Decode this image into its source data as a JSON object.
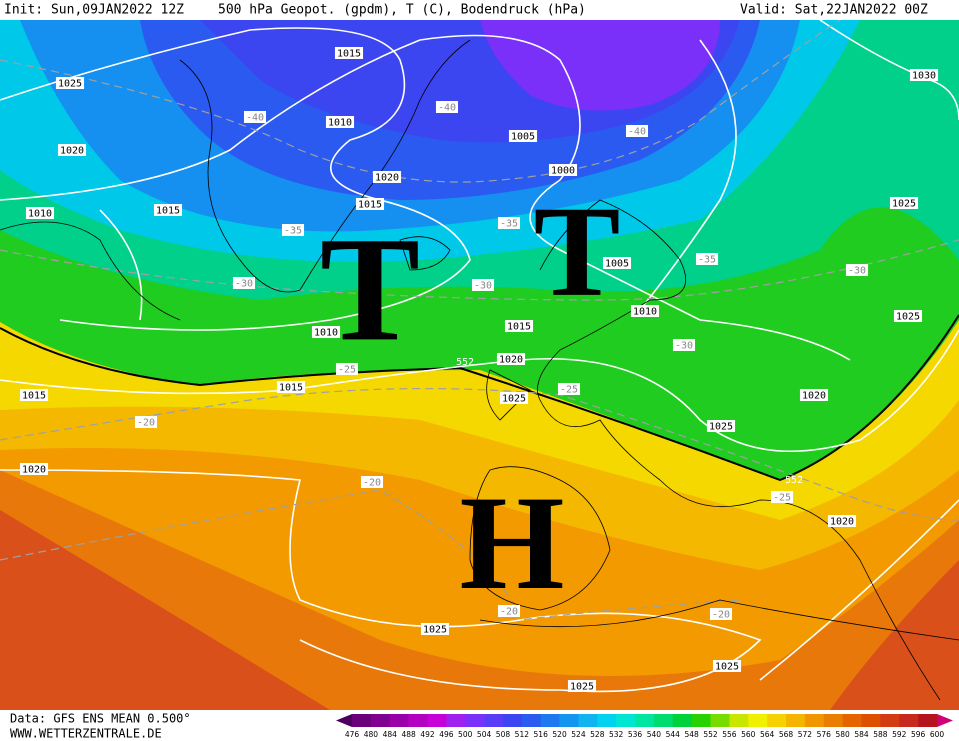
{
  "header": {
    "init": "Init: Sun,09JAN2022 12Z",
    "title": "500 hPa Geopot. (gpdm), T (C), Bodendruck (hPa)",
    "valid": "Valid: Sat,22JAN2022 00Z"
  },
  "footer": {
    "data": "Data: GFS ENS MEAN 0.500°",
    "site": "WWW.WETTERZENTRALE.DE"
  },
  "pressure_systems": [
    "T",
    "T",
    "H"
  ],
  "isobar_labels": [
    "1015",
    "1025",
    "1030",
    "1010",
    "1020",
    "1005",
    "1000",
    "1020",
    "1015",
    "1010",
    "1015",
    "1025",
    "1005",
    "1010",
    "1015",
    "1010",
    "1025",
    "1020",
    "1015",
    "1025",
    "1015",
    "1020",
    "1025",
    "1020",
    "1020",
    "1025",
    "1025",
    "1025"
  ],
  "temperature_labels": [
    "-40",
    "-40",
    "-40",
    "-35",
    "-35",
    "-35",
    "-30",
    "-30",
    "-30",
    "-30",
    "-25",
    "-25",
    "-25",
    "-20",
    "-20",
    "-20",
    "-20"
  ],
  "geopotential_labels": [
    "552",
    "552"
  ],
  "colorbar": {
    "labels": [
      476,
      480,
      484,
      488,
      492,
      496,
      500,
      504,
      508,
      512,
      516,
      520,
      524,
      528,
      532,
      536,
      540,
      544,
      548,
      552,
      556,
      560,
      564,
      568,
      572,
      576,
      580,
      584,
      588,
      592,
      596,
      600
    ],
    "colors": [
      "#4b0060",
      "#6b007b",
      "#80008f",
      "#9a00a8",
      "#b400c0",
      "#c800d8",
      "#a020f0",
      "#7a30f8",
      "#5a3cf8",
      "#3c46f0",
      "#2a5af0",
      "#1e78f0",
      "#1496f0",
      "#10b4f0",
      "#00d2f0",
      "#00e6d2",
      "#00e6a0",
      "#00dc6e",
      "#00d23c",
      "#28d200",
      "#78dc00",
      "#c8e600",
      "#f0f000",
      "#f5d200",
      "#f5b400",
      "#f09600",
      "#eb7d00",
      "#e66400",
      "#dc5000",
      "#d23c14",
      "#c8281e",
      "#b4141e",
      "#d20078"
    ]
  }
}
